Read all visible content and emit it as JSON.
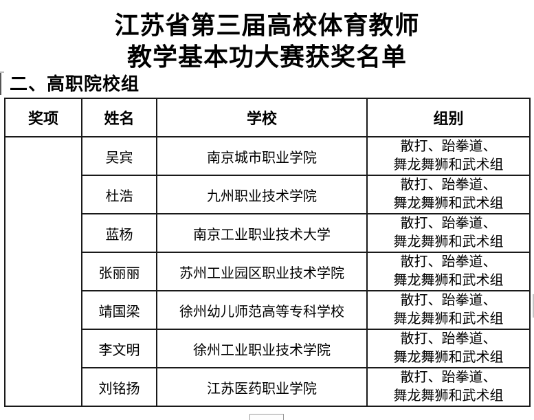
{
  "title": {
    "line1": "江苏省第三届高校体育教师",
    "line2": "教学基本功大赛获奖名单"
  },
  "section_heading": "二、高职院校组",
  "table": {
    "headers": {
      "award": "奖项",
      "name": "姓名",
      "school": "学校",
      "group": "组别"
    },
    "award_cell": "",
    "rows": [
      {
        "name": "吴宾",
        "school": "南京城市职业学院",
        "group_line1": "散打、跆拳道、",
        "group_line2": "舞龙舞狮和武术组"
      },
      {
        "name": "杜浩",
        "school": "九州职业技术学院",
        "group_line1": "散打、跆拳道、",
        "group_line2": "舞龙舞狮和武术组"
      },
      {
        "name": "蓝杨",
        "school": "南京工业职业技术大学",
        "group_line1": "散打、跆拳道、",
        "group_line2": "舞龙舞狮和武术组"
      },
      {
        "name": "张丽丽",
        "school": "苏州工业园区职业技术学院",
        "group_line1": "散打、跆拳道、",
        "group_line2": "舞龙舞狮和武术组"
      },
      {
        "name": "靖国梁",
        "school": "徐州幼儿师范高等专科学校",
        "group_line1": "散打、跆拳道、",
        "group_line2": "舞龙舞狮和武术组"
      },
      {
        "name": "李文明",
        "school": "徐州工业职业技术学院",
        "group_line1": "散打、跆拳道、",
        "group_line2": "舞龙舞狮和武术组"
      },
      {
        "name": "刘铭扬",
        "school": "江苏医药职业学院",
        "group_line1": "散打、跆拳道、",
        "group_line2": "舞龙舞狮和武术组"
      }
    ]
  },
  "colors": {
    "text": "#000000",
    "border": "#1a1a1a",
    "background": "#ffffff"
  }
}
